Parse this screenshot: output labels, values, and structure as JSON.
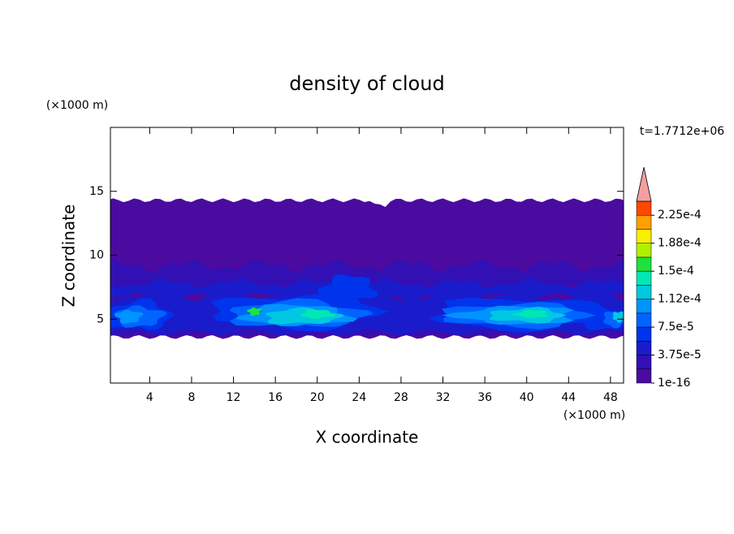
{
  "chart_data": {
    "type": "contour",
    "title": "density of cloud",
    "xlabel": "X coordinate",
    "ylabel": "Z coordinate",
    "x_unit": "(×1000 m)",
    "y_unit": "(×1000 m)",
    "time_label": "t=1.7712e+06",
    "xlim": [
      0.25,
      49.25
    ],
    "ylim": [
      0,
      20
    ],
    "xticks": [
      4,
      8,
      12,
      16,
      20,
      24,
      28,
      32,
      36,
      40,
      44,
      48
    ],
    "yticks": [
      5,
      10,
      15
    ],
    "levels": [
      1e-16,
      1.875e-05,
      3.75e-05,
      5.625e-05,
      7.5e-05,
      9.375e-05,
      0.0001125,
      0.00013125,
      0.00015,
      0.00016875,
      0.0001875,
      0.00020625,
      0.000225
    ],
    "colors": [
      "#4b0aa0",
      "#3210b4",
      "#1a1ccc",
      "#0034ec",
      "#0064ff",
      "#0094ff",
      "#00c8e0",
      "#00e8b4",
      "#20e040",
      "#b0f000",
      "#f8f000",
      "#ffa000",
      "#ff4800"
    ],
    "clim": [
      1e-16,
      0.00024375
    ],
    "extend_color": "#f5a0a0",
    "cbar_ticks": [
      {
        "value": 1e-16,
        "label": "1e-16"
      },
      {
        "value": 3.75e-05,
        "label": "3.75e-5"
      },
      {
        "value": 7.5e-05,
        "label": "7.5e-5"
      },
      {
        "value": 0.0001125,
        "label": "1.12e-4"
      },
      {
        "value": 0.00015,
        "label": "1.5e-4"
      },
      {
        "value": 0.0001875,
        "label": "1.88e-4"
      },
      {
        "value": 0.000225,
        "label": "2.25e-4"
      }
    ]
  }
}
